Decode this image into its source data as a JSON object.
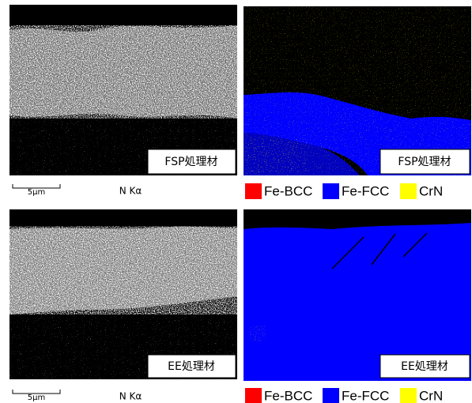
{
  "rows": [
    {
      "map_label": "FSP処理材",
      "scale_bar": "5μm",
      "element": "N Kα",
      "phase_label": "FSP処理材",
      "legend": [
        {
          "name": "Fe-BCC",
          "color": "#ff0000"
        },
        {
          "name": "Fe-FCC",
          "color": "#0000ff"
        },
        {
          "name": "CrN",
          "color": "#ffff00"
        }
      ]
    },
    {
      "map_label": "EE処理材",
      "scale_bar": "5μm",
      "element": "N Kα",
      "phase_label": "EE処理材",
      "legend": [
        {
          "name": "Fe-BCC",
          "color": "#ff0000"
        },
        {
          "name": "Fe-FCC",
          "color": "#0000ff"
        },
        {
          "name": "CrN",
          "color": "#ffff00"
        }
      ]
    }
  ]
}
